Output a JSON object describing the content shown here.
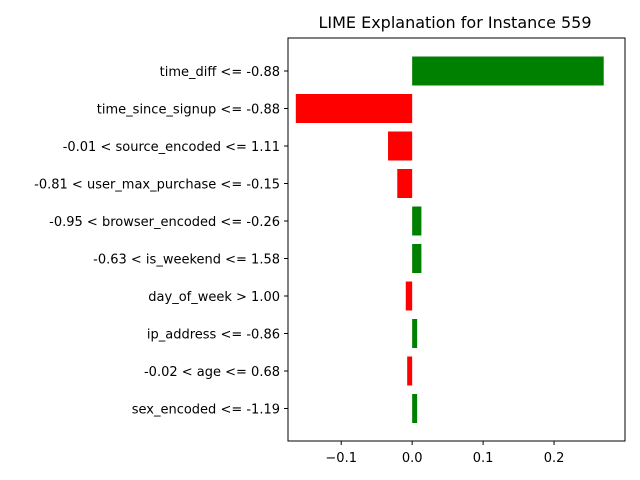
{
  "chart_data": {
    "type": "bar",
    "orientation": "horizontal",
    "title": "LIME Explanation for Instance 559",
    "xlabel": "",
    "ylabel": "",
    "xlim": [
      -0.175,
      0.3
    ],
    "xticks": [
      -0.1,
      0.0,
      0.1,
      0.2
    ],
    "xtick_labels": [
      "−0.1",
      "0.0",
      "0.1",
      "0.2"
    ],
    "grid": false,
    "legend": "none",
    "colors": {
      "positive": "#008000",
      "negative": "#ff0000"
    },
    "categories": [
      "time_diff <= -0.88",
      "time_since_signup <= -0.88",
      "-0.01 < source_encoded <= 1.11",
      "-0.81 < user_max_purchase <= -0.15",
      "-0.95 < browser_encoded <= -0.26",
      "-0.63 < is_weekend <= 1.58",
      "day_of_week > 1.00",
      "ip_address <= -0.86",
      "-0.02 < age <= 0.68",
      "sex_encoded <= -1.19"
    ],
    "values": [
      0.27,
      -0.164,
      -0.034,
      -0.021,
      0.013,
      0.013,
      -0.009,
      0.007,
      -0.007,
      0.007
    ]
  }
}
